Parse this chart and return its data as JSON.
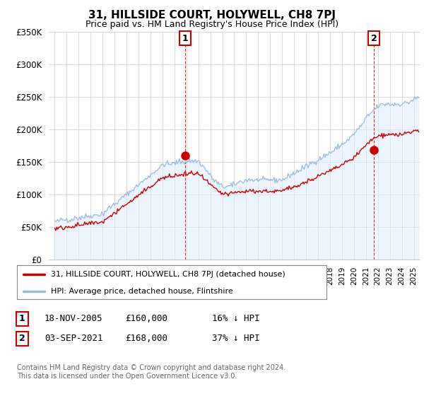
{
  "title": "31, HILLSIDE COURT, HOLYWELL, CH8 7PJ",
  "subtitle": "Price paid vs. HM Land Registry's House Price Index (HPI)",
  "legend_label_red": "31, HILLSIDE COURT, HOLYWELL, CH8 7PJ (detached house)",
  "legend_label_blue": "HPI: Average price, detached house, Flintshire",
  "footnote": "Contains HM Land Registry data © Crown copyright and database right 2024.\nThis data is licensed under the Open Government Licence v3.0.",
  "sale1_date": "18-NOV-2005",
  "sale1_price": "£160,000",
  "sale1_hpi": "16% ↓ HPI",
  "sale2_date": "03-SEP-2021",
  "sale2_price": "£168,000",
  "sale2_hpi": "37% ↓ HPI",
  "sale1_year": 2005.88,
  "sale1_value": 160000,
  "sale2_year": 2021.67,
  "sale2_value": 168000,
  "red_color": "#cc0000",
  "blue_color": "#99bbdd",
  "blue_fill_color": "#ddeeff",
  "vline_color": "#cc0000",
  "ylim_min": 0,
  "ylim_max": 350000,
  "yticks": [
    0,
    50000,
    100000,
    150000,
    200000,
    250000,
    300000,
    350000
  ],
  "ytick_labels": [
    "£0",
    "£50K",
    "£100K",
    "£150K",
    "£200K",
    "£250K",
    "£300K",
    "£350K"
  ],
  "xlim_min": 1994.5,
  "xlim_max": 2025.5,
  "background_color": "#ffffff",
  "grid_color": "#cccccc"
}
